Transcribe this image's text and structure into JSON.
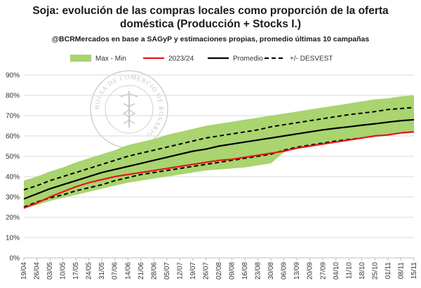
{
  "chart_data": {
    "type": "line",
    "title_line1": "Soja: evolución de las compras locales como proporción de la oferta",
    "title_line2": "doméstica (Producción + Stocks I.)",
    "subtitle": "@BCRMercados en base a SAGyP y estimaciones propias, promedio últimas 10 campañas",
    "watermark": "BOLSA DE COMERCIO DE ROSARIO",
    "y_ticks": [
      "90%",
      "80%",
      "70%",
      "60%",
      "50%",
      "40%",
      "30%",
      "20%",
      "10%",
      "0%"
    ],
    "ylim": [
      0,
      90
    ],
    "x": [
      "19/04",
      "26/04",
      "03/05",
      "10/05",
      "17/05",
      "24/05",
      "31/05",
      "07/06",
      "14/06",
      "21/06",
      "28/06",
      "05/07",
      "12/07",
      "19/07",
      "26/07",
      "02/08",
      "09/08",
      "16/08",
      "23/08",
      "30/08",
      "06/09",
      "13/09",
      "20/09",
      "27/09",
      "04/10",
      "11/10",
      "18/10",
      "25/10",
      "01/11",
      "08/11",
      "15/11"
    ],
    "legend": [
      "Max - Min",
      "2023/24",
      "Promedio",
      "+/- DESVEST"
    ],
    "colors": {
      "band": "#a9d46f",
      "current": "#e8141b",
      "average": "#000000",
      "stdev": "#000000"
    },
    "series": [
      {
        "name": "Max",
        "values": [
          38,
          40,
          42.5,
          44.5,
          47,
          49,
          51,
          53,
          55.5,
          57,
          58.5,
          60.5,
          62,
          63.5,
          65,
          66,
          67,
          68,
          69,
          70,
          71,
          72,
          73,
          74,
          75,
          76,
          77,
          78,
          78.5,
          79.5,
          80
        ]
      },
      {
        "name": "Min",
        "values": [
          24.5,
          26,
          28,
          29.5,
          31,
          32.5,
          34,
          35.5,
          37,
          38,
          39,
          40,
          41,
          42,
          43,
          43.5,
          44,
          44.5,
          45.5,
          46.5,
          52,
          54,
          55,
          56,
          57,
          58,
          59,
          60,
          60.5,
          61.5,
          62
        ]
      },
      {
        "name": "2023/24",
        "values": [
          24.5,
          27,
          30,
          32.5,
          35,
          37,
          38.5,
          40,
          41,
          42,
          43,
          44,
          45,
          46,
          47,
          48,
          48.5,
          49.5,
          50.5,
          51.5,
          52.5,
          54,
          55,
          56,
          57,
          58,
          59,
          60,
          60.5,
          61.5,
          62
        ]
      },
      {
        "name": "Promedio",
        "values": [
          29,
          31.5,
          34,
          36,
          38,
          40,
          42,
          43.5,
          45,
          46.5,
          48,
          49.5,
          51,
          52.5,
          53.5,
          55,
          56,
          57,
          58,
          59,
          60,
          61,
          62,
          63,
          63.8,
          64.5,
          65.3,
          66,
          66.8,
          67.5,
          68
        ]
      },
      {
        "name": "+DESVEST",
        "values": [
          33.5,
          35.5,
          38,
          40,
          42,
          44,
          46,
          48,
          50,
          51.5,
          53,
          54.5,
          56,
          57.5,
          59,
          60,
          61,
          62,
          63,
          64.5,
          65.5,
          66.5,
          67.5,
          68.5,
          69.5,
          70.5,
          71.2,
          72,
          73,
          73.5,
          74
        ]
      },
      {
        "name": "-DESVEST",
        "values": [
          25,
          27.5,
          29.5,
          31,
          33,
          34.5,
          36,
          38,
          39.5,
          41,
          42,
          43,
          44,
          45,
          46,
          47,
          48,
          49,
          50,
          51,
          53,
          54.5,
          55.5,
          56.5,
          57.5,
          58.3,
          59,
          60,
          60.5,
          61.5,
          62
        ]
      }
    ]
  }
}
